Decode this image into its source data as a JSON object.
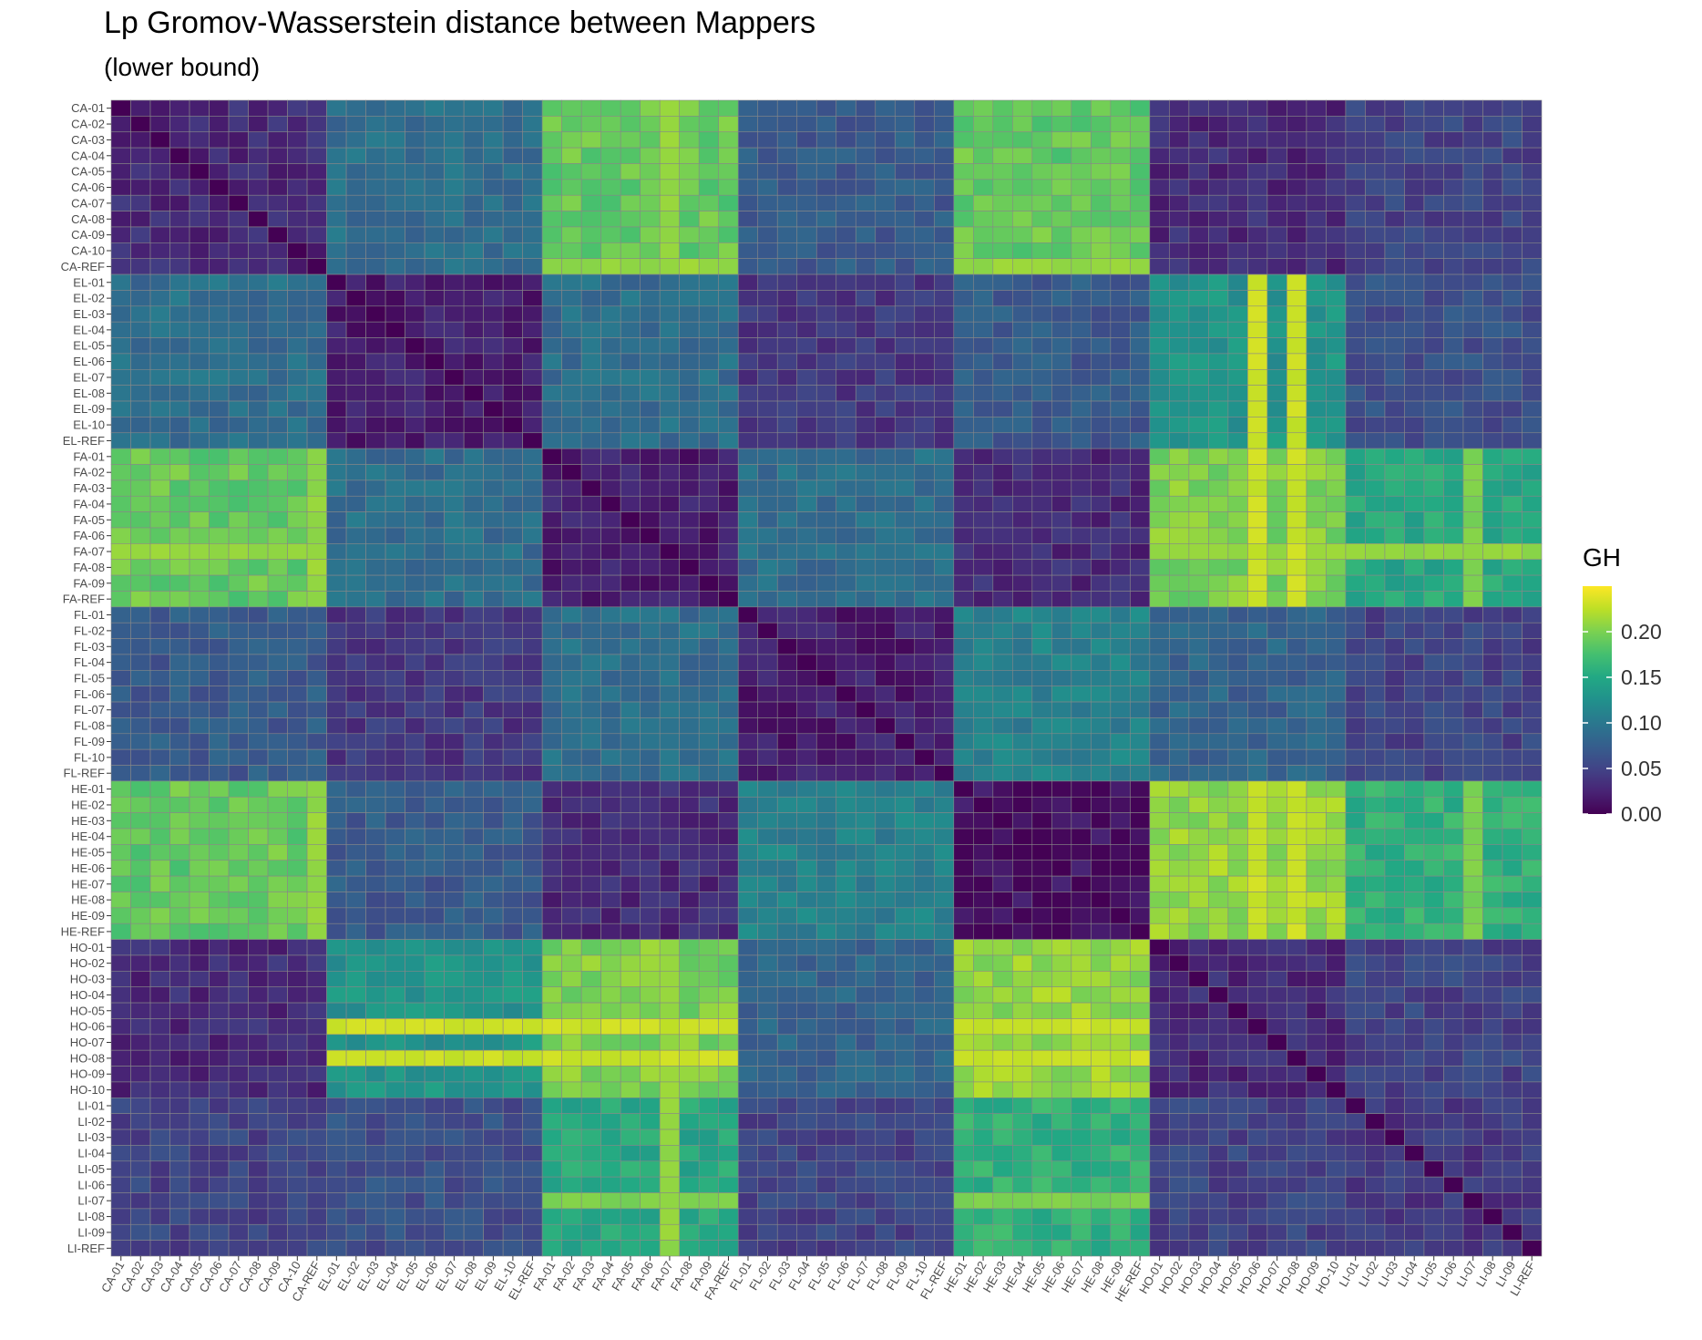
{
  "chart_data": {
    "type": "heatmap",
    "title": "Lp Gromov-Wasserstein distance between Mappers",
    "subtitle": "(lower bound)",
    "legend": {
      "title": "GH",
      "position": "right",
      "ticks": [
        "0.00",
        "0.05",
        "0.10",
        "0.15",
        "0.20"
      ],
      "tick_values": [
        0,
        0.05,
        0.1,
        0.15,
        0.2
      ],
      "range": [
        0,
        0.25
      ],
      "colormap": "viridis"
    },
    "xlabel": "",
    "ylabel": "",
    "labels": [
      "CA-01",
      "CA-02",
      "CA-03",
      "CA-04",
      "CA-05",
      "CA-06",
      "CA-07",
      "CA-08",
      "CA-09",
      "CA-10",
      "CA-REF",
      "EL-01",
      "EL-02",
      "EL-03",
      "EL-04",
      "EL-05",
      "EL-06",
      "EL-07",
      "EL-08",
      "EL-09",
      "EL-10",
      "EL-REF",
      "FA-01",
      "FA-02",
      "FA-03",
      "FA-04",
      "FA-05",
      "FA-06",
      "FA-07",
      "FA-08",
      "FA-09",
      "FA-REF",
      "FL-01",
      "FL-02",
      "FL-03",
      "FL-04",
      "FL-05",
      "FL-06",
      "FL-07",
      "FL-08",
      "FL-09",
      "FL-10",
      "FL-REF",
      "HE-01",
      "HE-02",
      "HE-03",
      "HE-04",
      "HE-05",
      "HE-06",
      "HE-07",
      "HE-08",
      "HE-09",
      "HE-REF",
      "HO-01",
      "HO-02",
      "HO-03",
      "HO-04",
      "HO-05",
      "HO-06",
      "HO-07",
      "HO-08",
      "HO-09",
      "HO-10",
      "LI-01",
      "LI-02",
      "LI-03",
      "LI-04",
      "LI-05",
      "LI-06",
      "LI-07",
      "LI-08",
      "LI-09",
      "LI-REF"
    ],
    "groups": [
      {
        "name": "CA",
        "count": 11
      },
      {
        "name": "EL",
        "count": 11
      },
      {
        "name": "FA",
        "count": 10
      },
      {
        "name": "FL",
        "count": 11
      },
      {
        "name": "HE",
        "count": 10
      },
      {
        "name": "HO",
        "count": 10
      },
      {
        "name": "LI",
        "count": 10
      }
    ],
    "block_values_approx": [
      [
        0.03,
        0.09,
        0.19,
        0.07,
        0.19,
        0.03,
        0.05
      ],
      [
        0.09,
        0.02,
        0.09,
        0.04,
        0.07,
        0.13,
        0.06
      ],
      [
        0.19,
        0.09,
        0.02,
        0.09,
        0.03,
        0.2,
        0.15
      ],
      [
        0.07,
        0.04,
        0.09,
        0.02,
        0.11,
        0.08,
        0.05
      ],
      [
        0.19,
        0.07,
        0.03,
        0.11,
        0.01,
        0.21,
        0.16
      ],
      [
        0.03,
        0.13,
        0.2,
        0.08,
        0.21,
        0.03,
        0.05
      ],
      [
        0.05,
        0.06,
        0.15,
        0.05,
        0.16,
        0.05,
        0.04
      ]
    ],
    "special_rows_note_values": {
      "FA-07": 0.22,
      "CA-REF": 0.22,
      "LI-07": 0.21,
      "HO-06": 0.24,
      "HO-08": 0.24
    },
    "diagonal": 0.0
  }
}
